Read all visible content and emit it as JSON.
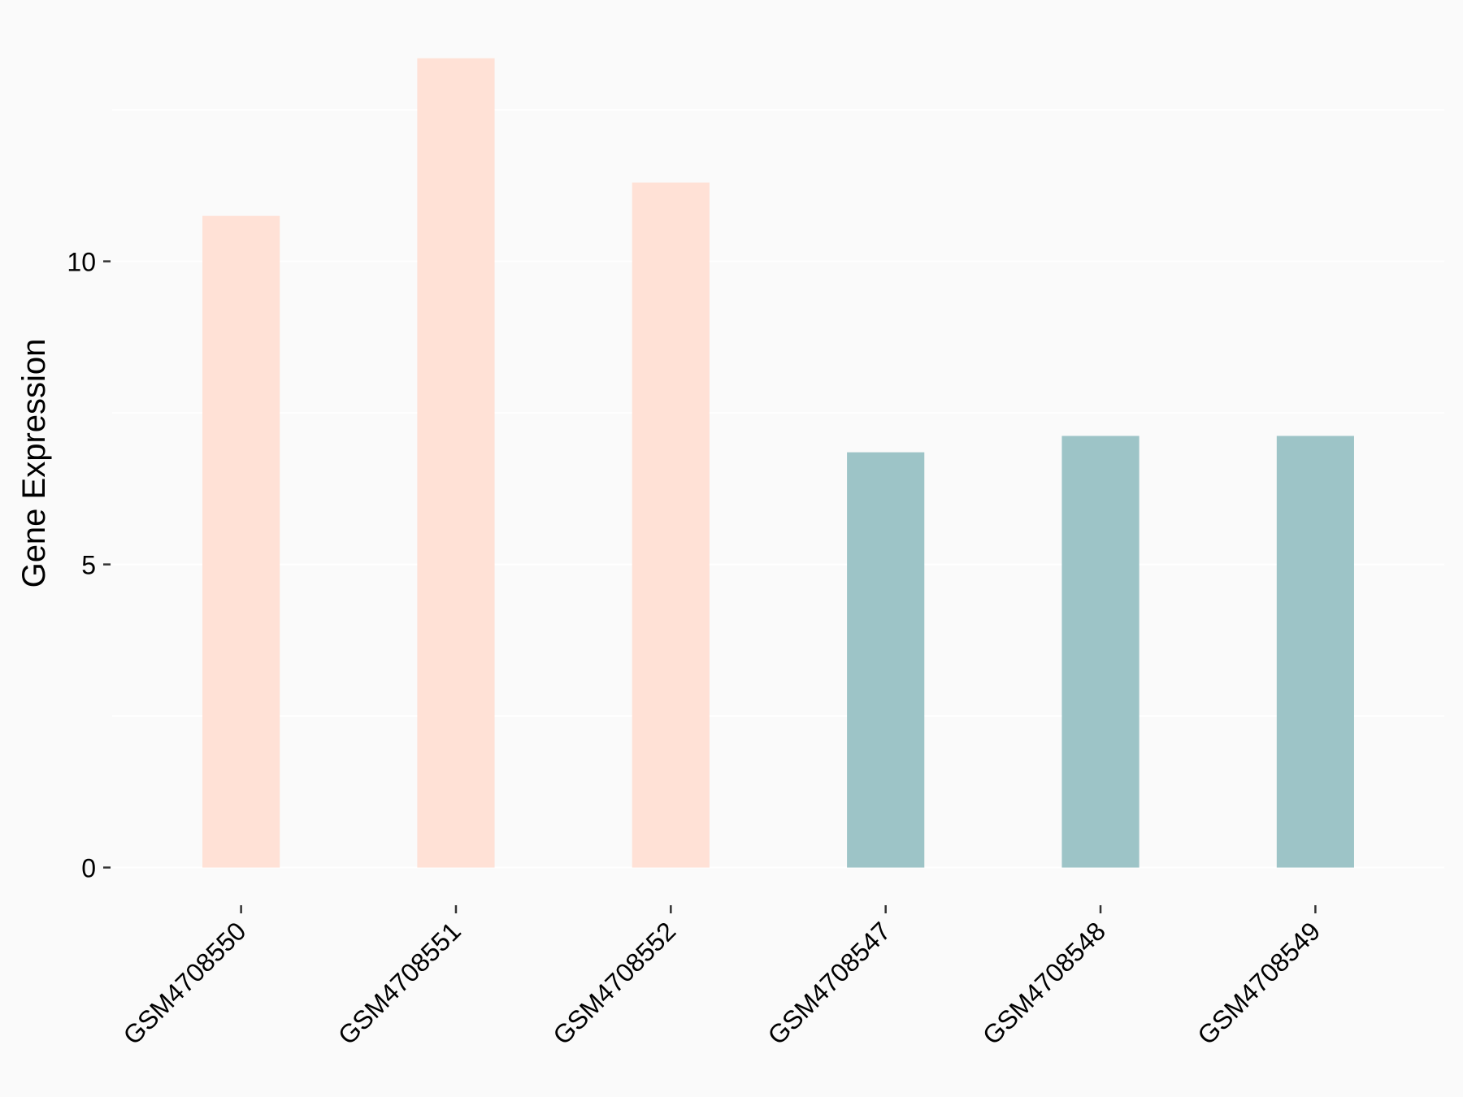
{
  "chart_data": {
    "type": "bar",
    "title": "",
    "xlabel": "",
    "ylabel": "Gene Expression",
    "categories": [
      "GSM4708550",
      "GSM4708551",
      "GSM4708552",
      "GSM4708547",
      "GSM4708548",
      "GSM4708549"
    ],
    "values": [
      10.75,
      13.35,
      11.3,
      6.85,
      7.12,
      7.12
    ],
    "bar_colors": [
      "#FFE1D6",
      "#FFE1D6",
      "#FFE1D6",
      "#9DC4C7",
      "#9DC4C7",
      "#9DC4C7"
    ],
    "ylim": [
      0,
      14
    ],
    "yticks": [
      0,
      5,
      10
    ],
    "ytick_labels": [
      "0",
      "5",
      "10"
    ],
    "minor_grid": [
      2.5,
      7.5,
      12.5
    ],
    "grid": true,
    "legend": "none",
    "background": "#FAFAFA"
  }
}
